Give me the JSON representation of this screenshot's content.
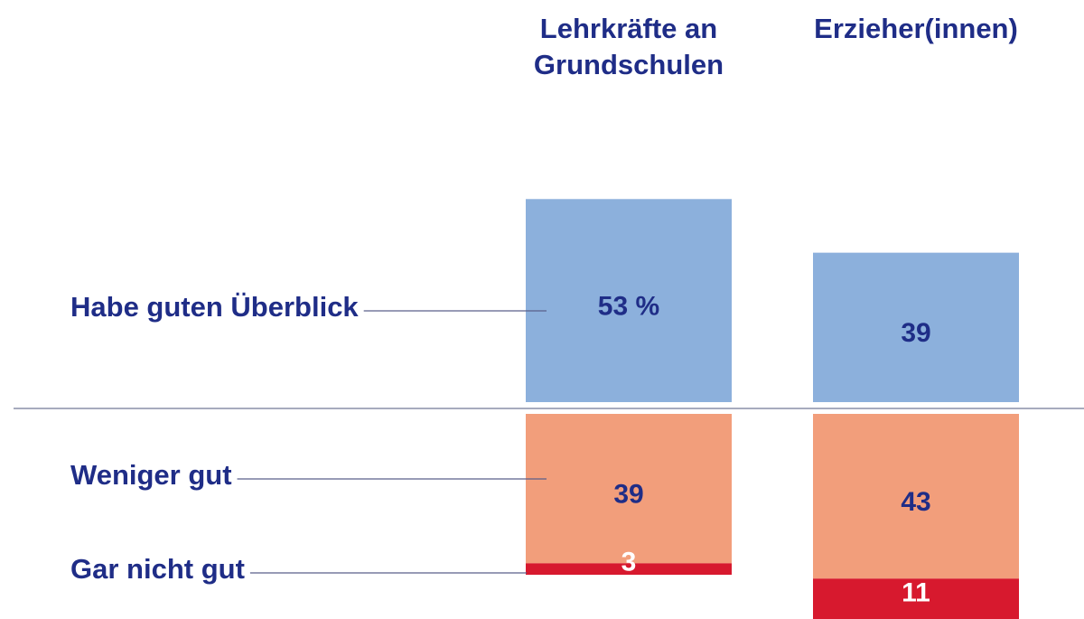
{
  "chart_data": {
    "type": "diverging-bar",
    "categories": [
      "Lehrkräfte an\nGrundschulen",
      "Erzieher(innen)"
    ],
    "series": [
      {
        "name": "Habe guten Überblick",
        "color": "#8cb0dc",
        "values": [
          53,
          39
        ],
        "value_labels": [
          "53 %",
          "39"
        ],
        "label_color": "#1f2d87"
      },
      {
        "name": "Weniger gut",
        "color": "#f29e7b",
        "values": [
          39,
          43
        ],
        "label_color": "#1f2d87"
      },
      {
        "name": "Gar nicht gut",
        "color": "#d7192e",
        "values": [
          3,
          11
        ],
        "label_color": "#ffffff"
      }
    ]
  }
}
